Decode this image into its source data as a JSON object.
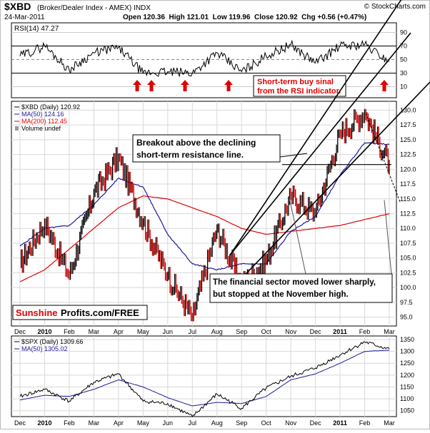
{
  "header": {
    "symbol": "$XBD",
    "name": "(Broker/Dealer Index - AMEX) INDX",
    "date": "24-Mar-2011",
    "ohlc": "Open 120.36  High 121.01  Low 119.96  Close 120.92  Chg +0.56 (+0.47%)",
    "credit": "© StockCharts.com"
  },
  "rsi_panel": {
    "label": "RSI(14) 47.27",
    "ticks": [
      90,
      70,
      50,
      30,
      10
    ],
    "callout": [
      "Short-term buy sinal",
      "from the RSI indicator."
    ]
  },
  "price_panel": {
    "legend": [
      "$XBD (Daily) 120.92",
      "MA(50) 124.16",
      "MA(200) 112.45",
      "Volume undef"
    ],
    "ticks": [
      "130.0",
      "127.5",
      "125.0",
      "122.5",
      "120.0",
      "117.5",
      "115.0",
      "112.5",
      "110.0",
      "107.5",
      "105.0",
      "102.5",
      "100.0",
      "97.5",
      "95.0"
    ],
    "callout_breakout": [
      "Breakout above the declining",
      "short-term resistance line."
    ],
    "callout_financial": [
      "The financial sector moved lower sharply,",
      "but stopped at the November high."
    ],
    "watermark_a": "Sunshine",
    "watermark_b": "Profits.com/FREE"
  },
  "spx_panel": {
    "legend": [
      "$SPX (Daily) 1309.66",
      "MA(50) 1305.02"
    ],
    "ticks": [
      "1350",
      "1300",
      "1250",
      "1200",
      "1150",
      "1100",
      "1050"
    ]
  },
  "months": [
    "Dec",
    "2010",
    "Feb",
    "Mar",
    "Apr",
    "May",
    "Jun",
    "Jul",
    "Aug",
    "Sep",
    "Oct",
    "Nov",
    "Dec",
    "2011",
    "Feb",
    "Mar"
  ],
  "chart_data": {
    "type": "line",
    "title": "$XBD (Broker/Dealer Index - AMEX) INDX",
    "x": [
      "Dec",
      "2010",
      "Feb",
      "Mar",
      "Apr",
      "May",
      "Jun",
      "Jul",
      "Aug",
      "Sep",
      "Oct",
      "Nov",
      "Dec",
      "2011",
      "Feb",
      "Mar"
    ],
    "series": [
      {
        "name": "$XBD (Daily)",
        "values": [
          104.0,
          111.0,
          102.0,
          116.0,
          122.0,
          111.0,
          102.0,
          95.0,
          110.0,
          100.5,
          104.5,
          115.5,
          112.5,
          126.0,
          129.5,
          120.9
        ]
      },
      {
        "name": "MA(50)",
        "values": [
          107.0,
          110.0,
          110.5,
          114.0,
          118.5,
          117.0,
          109.0,
          104.0,
          103.0,
          104.0,
          104.0,
          109.5,
          112.0,
          119.0,
          124.5,
          124.2
        ]
      },
      {
        "name": "MA(200)",
        "values": [
          101.0,
          103.0,
          106.5,
          110.0,
          113.5,
          115.5,
          115.0,
          113.5,
          112.0,
          110.0,
          109.0,
          109.5,
          110.0,
          110.5,
          111.5,
          112.5
        ]
      },
      {
        "name": "RSI(14)",
        "values": [
          55,
          70,
          35,
          60,
          68,
          30,
          32,
          30,
          60,
          32,
          55,
          72,
          45,
          70,
          72,
          47
        ]
      },
      {
        "name": "$SPX (Daily)",
        "values": [
          1110,
          1140,
          1090,
          1170,
          1205,
          1090,
          1080,
          1025,
          1120,
          1060,
          1145,
          1195,
          1230,
          1285,
          1340,
          1309.7
        ]
      },
      {
        "name": "MA(50) SPX",
        "values": [
          1095,
          1115,
          1110,
          1140,
          1180,
          1150,
          1105,
          1070,
          1085,
          1080,
          1110,
          1180,
          1205,
          1250,
          1300,
          1305
        ]
      }
    ],
    "xlabel": "",
    "ylabel": "",
    "ylim": [
      93.5,
      131.5
    ]
  }
}
